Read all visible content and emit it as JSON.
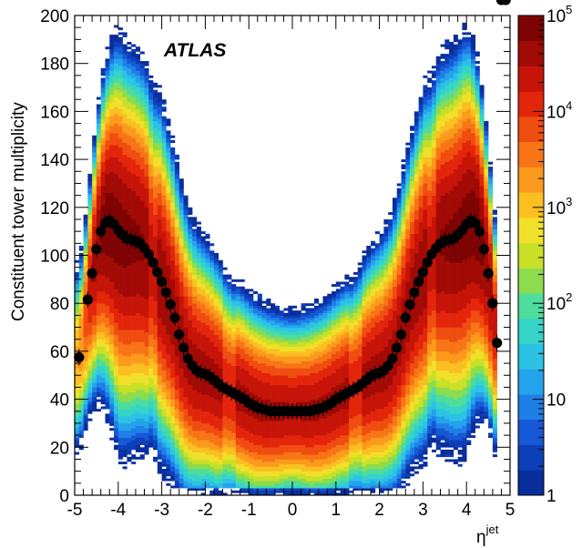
{
  "chart_data": {
    "type": "heatmap",
    "title": "",
    "experiment_label": "ATLAS",
    "xlabel": {
      "symbol": "η",
      "superscript": "jet"
    },
    "ylabel": "Constituent tower multiplicity",
    "xlim": [
      -5,
      5
    ],
    "ylim": [
      0,
      200
    ],
    "x_ticks": [
      "-5",
      "-4",
      "-3",
      "-2",
      "-1",
      "0",
      "1",
      "2",
      "3",
      "4",
      "5"
    ],
    "y_ticks": [
      "0",
      "20",
      "40",
      "60",
      "80",
      "100",
      "120",
      "140",
      "160",
      "180",
      "200"
    ],
    "colorbar": {
      "scale": "log",
      "range": [
        1,
        100000
      ],
      "tick_labels": [
        {
          "base": "1",
          "exp": ""
        },
        {
          "base": "10",
          "exp": ""
        },
        {
          "base": "10",
          "exp": "2"
        },
        {
          "base": "10",
          "exp": "3"
        },
        {
          "base": "10",
          "exp": "4"
        },
        {
          "base": "10",
          "exp": "5"
        }
      ]
    },
    "mean_profile": {
      "x": [
        -4.9,
        -4.7,
        -4.6,
        -4.5,
        -4.4,
        -4.3,
        -4.2,
        -4.1,
        -4.0,
        -3.9,
        -3.8,
        -3.7,
        -3.6,
        -3.5,
        -3.4,
        -3.3,
        -3.2,
        -3.1,
        -3.0,
        -2.9,
        -2.8,
        -2.7,
        -2.6,
        -2.5,
        -2.4,
        -2.3,
        -2.2,
        -2.1,
        -2.0,
        -1.9,
        -1.8,
        -1.7,
        -1.6,
        -1.5,
        -1.4,
        -1.3,
        -1.2,
        -1.1,
        -1.0,
        -0.9,
        -0.8,
        -0.7,
        -0.6,
        -0.5,
        -0.4,
        -0.3,
        -0.2,
        -0.1,
        0.0,
        0.1,
        0.2,
        0.3,
        0.4,
        0.5,
        0.6,
        0.7,
        0.8,
        0.9,
        1.0,
        1.1,
        1.2,
        1.3,
        1.4,
        1.5,
        1.6,
        1.7,
        1.8,
        1.9,
        2.0,
        2.1,
        2.2,
        2.3,
        2.4,
        2.5,
        2.6,
        2.7,
        2.8,
        2.9,
        3.0,
        3.1,
        3.2,
        3.3,
        3.4,
        3.5,
        3.6,
        3.7,
        3.8,
        3.9,
        4.0,
        4.1,
        4.2,
        4.3,
        4.4,
        4.5,
        4.6,
        4.7,
        4.8,
        4.9
      ],
      "y": [
        57.5,
        81.5,
        92.5,
        102.5,
        110,
        113.5,
        114.5,
        113,
        110.5,
        108.5,
        107,
        106.5,
        106,
        105,
        103,
        100.5,
        97,
        93,
        89,
        84.5,
        79.5,
        74,
        67,
        61.5,
        57,
        54,
        52,
        51,
        50.5,
        49.5,
        48,
        46.5,
        45,
        44,
        43,
        42,
        41,
        40,
        38.5,
        37.5,
        36.5,
        36,
        35.5,
        35,
        35,
        35,
        35,
        35,
        35,
        35,
        35,
        35,
        35,
        35.5,
        36,
        36.5,
        37.5,
        38.5,
        40,
        41,
        42,
        43,
        44,
        45,
        46.5,
        48,
        49.5,
        50.5,
        51,
        52,
        54,
        57,
        61.5,
        67,
        74,
        79.5,
        84.5,
        89,
        93,
        97,
        100.5,
        103,
        105,
        106,
        106.5,
        107,
        108.5,
        110.5,
        113,
        114.5,
        113.5,
        110,
        102.5,
        92.5,
        80,
        63.5
      ]
    },
    "distribution_model": {
      "width_above_mean": [
        [
          0,
          28
        ],
        [
          1.3,
          32
        ],
        [
          2.4,
          42
        ],
        [
          3.0,
          50
        ],
        [
          4.0,
          54
        ],
        [
          4.7,
          30
        ],
        [
          5.0,
          30
        ]
      ],
      "width_below_mean": [
        [
          0,
          27
        ],
        [
          1.3,
          32
        ],
        [
          2.2,
          38
        ],
        [
          3.0,
          52
        ],
        [
          4.0,
          62
        ],
        [
          4.7,
          35
        ],
        [
          5.0,
          30
        ]
      ],
      "peak_log_counts": [
        [
          0,
          4.5
        ],
        [
          2.5,
          4.6
        ],
        [
          4.3,
          4.9
        ],
        [
          4.6,
          4.5
        ],
        [
          4.9,
          3.2
        ]
      ]
    },
    "grid": false,
    "legend": "none"
  }
}
